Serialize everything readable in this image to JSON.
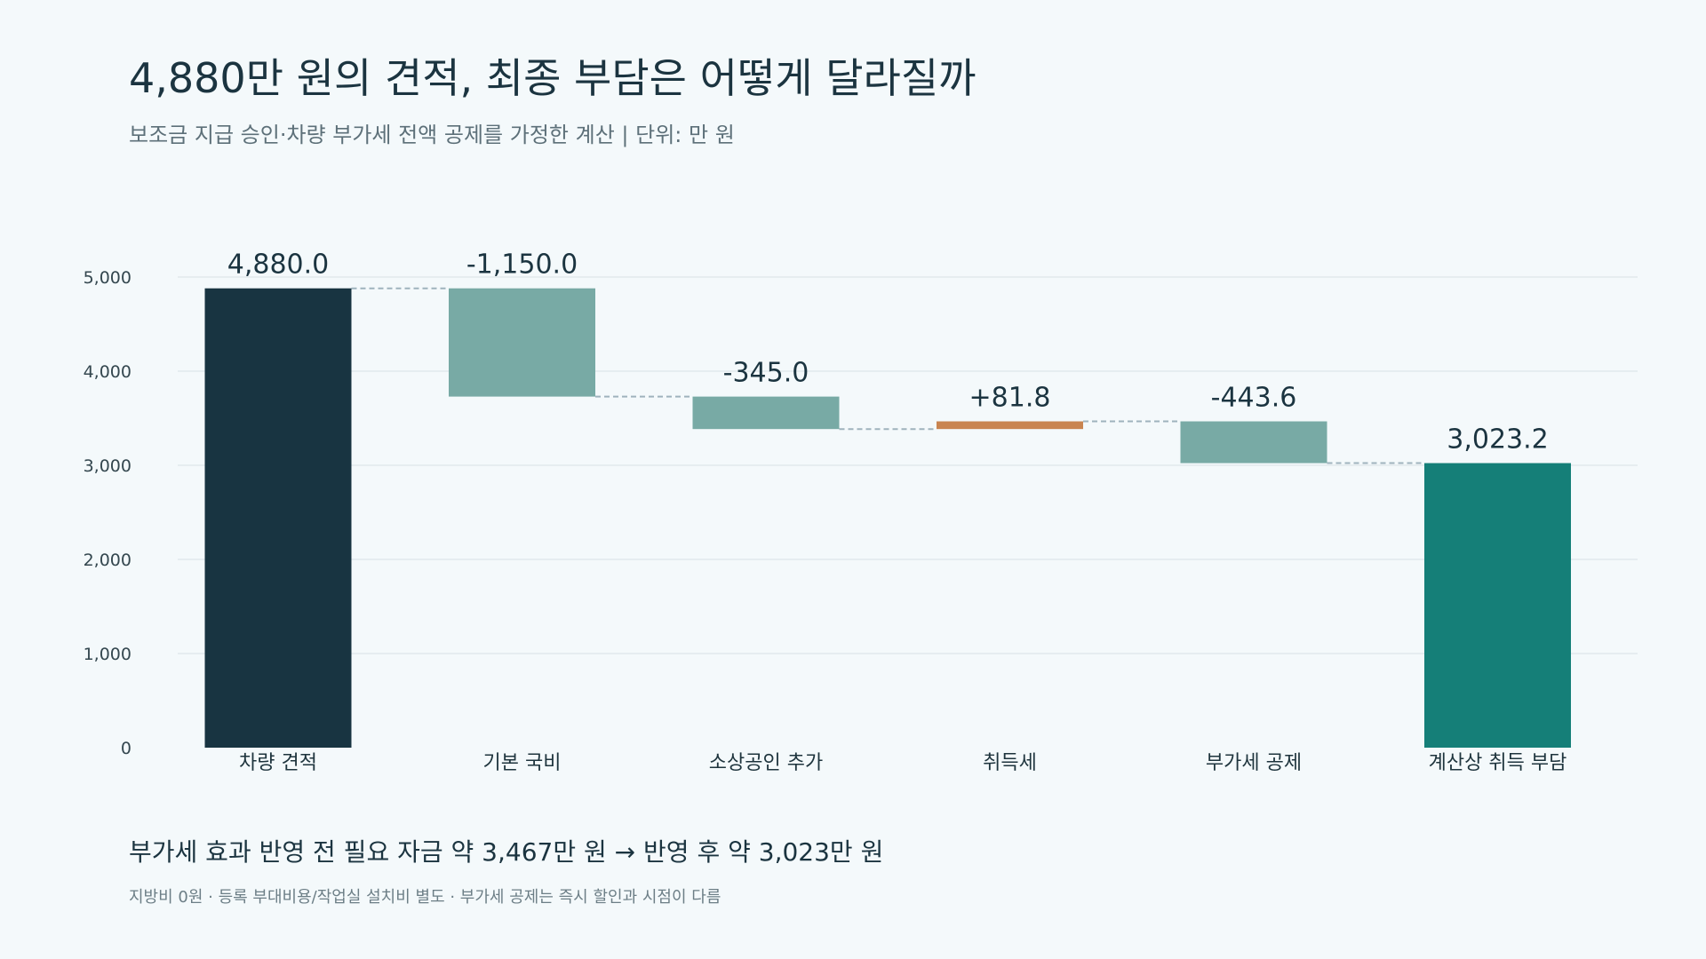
{
  "title": "4,880만 원의 견적, 최종 부담은 어떻게 달라질까",
  "subtitle": "보조금 지급 승인·차량 부가세 전액 공제를 가정한 계산   |   단위: 만 원",
  "footer": {
    "main": "부가세 효과 반영 전 필요 자금 약 3,467만 원 → 반영 후 약 3,023만 원",
    "note": "지방비 0원 · 등록 부대비용/작업실 설치비 별도 · 부가세 공제는 즉시 할인과 시점이 다름"
  },
  "colors": {
    "total_start": "#183441",
    "decrease": "#78aaa5",
    "increase": "#c98450",
    "total_end": "#157f78",
    "connector": "#9fb3bd",
    "grid": "#dde6ea"
  },
  "chart_data": {
    "type": "waterfall",
    "title": "4,880만 원의 견적, 최종 부담은 어떻게 달라질까",
    "unit": "만 원",
    "categories": [
      "차량 견적",
      "기본 국비",
      "소상공인 추가",
      "취득세",
      "부가세 공제",
      "계산상 취득 부담"
    ],
    "steps": [
      {
        "category": "차량 견적",
        "kind": "total",
        "start": 0,
        "end": 4880.0,
        "label": "4,880.0"
      },
      {
        "category": "기본 국비",
        "kind": "decrease",
        "start": 4880.0,
        "end": 3730.0,
        "label": "-1,150.0"
      },
      {
        "category": "소상공인 추가",
        "kind": "decrease",
        "start": 3730.0,
        "end": 3385.0,
        "label": "-345.0"
      },
      {
        "category": "취득세",
        "kind": "increase",
        "start": 3385.0,
        "end": 3466.8,
        "label": "+81.8"
      },
      {
        "category": "부가세 공제",
        "kind": "decrease",
        "start": 3466.8,
        "end": 3023.2,
        "label": "-443.6"
      },
      {
        "category": "계산상 취득 부담",
        "kind": "total",
        "start": 0,
        "end": 3023.2,
        "label": "3,023.2"
      }
    ],
    "y_ticks": [
      {
        "value": 0,
        "label": "0"
      },
      {
        "value": 1000,
        "label": "1,000"
      },
      {
        "value": 2000,
        "label": "2,000"
      },
      {
        "value": 3000,
        "label": "3,000"
      },
      {
        "value": 4000,
        "label": "4,000"
      },
      {
        "value": 5000,
        "label": "5,000"
      }
    ],
    "ylim": [
      0,
      5000
    ],
    "grid": true,
    "legend": "none"
  }
}
